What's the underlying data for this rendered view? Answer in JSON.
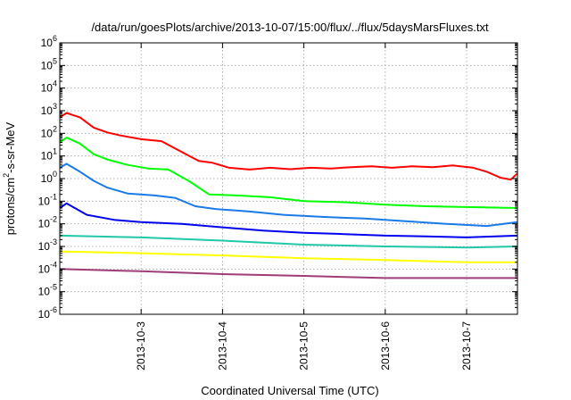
{
  "chart_data": {
    "type": "line",
    "title": "/data/run/goesPlots/archive/2013-10-07/15:00/flux/../flux/5daysMarsFluxes.txt",
    "xlabel": "Coordinated Universal Time (UTC)",
    "ylabel": {
      "prefix": "protons/cm",
      "sup": "2",
      "suffix": "-s-sr-MeV"
    },
    "y_scale": "log",
    "ylim": [
      1e-06,
      1000000.0
    ],
    "y_ticks": [
      {
        "exp": -6,
        "label_base": "10",
        "label_exp": "-6"
      },
      {
        "exp": -5,
        "label_base": "10",
        "label_exp": "-5"
      },
      {
        "exp": -4,
        "label_base": "10",
        "label_exp": "-4"
      },
      {
        "exp": -3,
        "label_base": "10",
        "label_exp": "-3"
      },
      {
        "exp": -2,
        "label_base": "10",
        "label_exp": "-2"
      },
      {
        "exp": -1,
        "label_base": "10",
        "label_exp": "-1"
      },
      {
        "exp": 0,
        "label_base": "10",
        "label_exp": "0"
      },
      {
        "exp": 1,
        "label_base": "10",
        "label_exp": "1"
      },
      {
        "exp": 2,
        "label_base": "10",
        "label_exp": "2"
      },
      {
        "exp": 3,
        "label_base": "10",
        "label_exp": "3"
      },
      {
        "exp": 4,
        "label_base": "10",
        "label_exp": "4"
      },
      {
        "exp": 5,
        "label_base": "10",
        "label_exp": "5"
      },
      {
        "exp": 6,
        "label_base": "10",
        "label_exp": "6"
      }
    ],
    "xlim": [
      "2013-10-02T00:00",
      "2013-10-07T15:00"
    ],
    "x_ticks": [
      {
        "value": "2013-10-03T00:00",
        "label": "2013-10-3"
      },
      {
        "value": "2013-10-04T00:00",
        "label": "2013-10-4"
      },
      {
        "value": "2013-10-05T00:00",
        "label": "2013-10-5"
      },
      {
        "value": "2013-10-06T00:00",
        "label": "2013-10-6"
      },
      {
        "value": "2013-10-07T00:00",
        "label": "2013-10-7"
      }
    ],
    "grid": true,
    "legend": "none",
    "series": [
      {
        "color": "#ff0000",
        "points": [
          [
            "2013-10-02T00:00",
            500
          ],
          [
            "2013-10-02T02:00",
            800
          ],
          [
            "2013-10-02T06:00",
            500
          ],
          [
            "2013-10-02T10:00",
            180
          ],
          [
            "2013-10-02T14:00",
            110
          ],
          [
            "2013-10-02T18:00",
            80
          ],
          [
            "2013-10-03T00:00",
            55
          ],
          [
            "2013-10-03T06:00",
            45
          ],
          [
            "2013-10-03T12:00",
            15
          ],
          [
            "2013-10-03T17:00",
            6
          ],
          [
            "2013-10-03T21:00",
            5
          ],
          [
            "2013-10-04T02:00",
            3
          ],
          [
            "2013-10-04T08:00",
            2.5
          ],
          [
            "2013-10-04T14:00",
            3
          ],
          [
            "2013-10-04T20:00",
            2.6
          ],
          [
            "2013-10-05T02:00",
            3
          ],
          [
            "2013-10-05T08:00",
            2.8
          ],
          [
            "2013-10-05T14:00",
            3.2
          ],
          [
            "2013-10-05T20:00",
            3.5
          ],
          [
            "2013-10-06T02:00",
            3
          ],
          [
            "2013-10-06T08:00",
            3.5
          ],
          [
            "2013-10-06T14:00",
            3.2
          ],
          [
            "2013-10-06T20:00",
            3.8
          ],
          [
            "2013-10-07T02:00",
            3
          ],
          [
            "2013-10-07T06:00",
            2
          ],
          [
            "2013-10-07T10:00",
            1.1
          ],
          [
            "2013-10-07T13:00",
            0.9
          ],
          [
            "2013-10-07T15:00",
            1.7
          ]
        ]
      },
      {
        "color": "#00ff00",
        "points": [
          [
            "2013-10-02T00:00",
            40
          ],
          [
            "2013-10-02T02:00",
            65
          ],
          [
            "2013-10-02T06:00",
            35
          ],
          [
            "2013-10-02T10:00",
            12
          ],
          [
            "2013-10-02T14:00",
            7
          ],
          [
            "2013-10-02T20:00",
            4
          ],
          [
            "2013-10-03T02:00",
            2.8
          ],
          [
            "2013-10-03T08:00",
            2.5
          ],
          [
            "2013-10-03T14:00",
            0.8
          ],
          [
            "2013-10-03T20:00",
            0.2
          ],
          [
            "2013-10-04T04:00",
            0.18
          ],
          [
            "2013-10-04T14:00",
            0.15
          ],
          [
            "2013-10-05T00:00",
            0.1
          ],
          [
            "2013-10-05T12:00",
            0.09
          ],
          [
            "2013-10-06T00:00",
            0.07
          ],
          [
            "2013-10-06T12:00",
            0.06
          ],
          [
            "2013-10-07T00:00",
            0.055
          ],
          [
            "2013-10-07T15:00",
            0.05
          ]
        ]
      },
      {
        "color": "#1a7ae8",
        "points": [
          [
            "2013-10-02T00:00",
            3
          ],
          [
            "2013-10-02T02:00",
            4.5
          ],
          [
            "2013-10-02T06:00",
            2
          ],
          [
            "2013-10-02T10:00",
            0.8
          ],
          [
            "2013-10-02T14:00",
            0.4
          ],
          [
            "2013-10-02T20:00",
            0.22
          ],
          [
            "2013-10-03T04:00",
            0.18
          ],
          [
            "2013-10-03T10:00",
            0.14
          ],
          [
            "2013-10-03T16:00",
            0.06
          ],
          [
            "2013-10-03T22:00",
            0.045
          ],
          [
            "2013-10-04T08:00",
            0.035
          ],
          [
            "2013-10-04T18:00",
            0.025
          ],
          [
            "2013-10-05T06:00",
            0.02
          ],
          [
            "2013-10-05T18:00",
            0.017
          ],
          [
            "2013-10-06T06:00",
            0.013
          ],
          [
            "2013-10-06T18:00",
            0.01
          ],
          [
            "2013-10-07T06:00",
            0.008
          ],
          [
            "2013-10-07T15:00",
            0.012
          ]
        ]
      },
      {
        "color": "#0000ee",
        "points": [
          [
            "2013-10-02T00:00",
            0.05
          ],
          [
            "2013-10-02T02:00",
            0.08
          ],
          [
            "2013-10-02T08:00",
            0.025
          ],
          [
            "2013-10-02T16:00",
            0.015
          ],
          [
            "2013-10-03T00:00",
            0.012
          ],
          [
            "2013-10-03T12:00",
            0.01
          ],
          [
            "2013-10-04T00:00",
            0.007
          ],
          [
            "2013-10-04T12:00",
            0.005
          ],
          [
            "2013-10-05T00:00",
            0.004
          ],
          [
            "2013-10-05T12:00",
            0.0035
          ],
          [
            "2013-10-06T00:00",
            0.003
          ],
          [
            "2013-10-06T12:00",
            0.0028
          ],
          [
            "2013-10-07T00:00",
            0.0025
          ],
          [
            "2013-10-07T15:00",
            0.003
          ]
        ]
      },
      {
        "color": "#20c8a8",
        "points": [
          [
            "2013-10-02T00:00",
            0.003
          ],
          [
            "2013-10-03T00:00",
            0.0025
          ],
          [
            "2013-10-04T00:00",
            0.0018
          ],
          [
            "2013-10-05T00:00",
            0.0012
          ],
          [
            "2013-10-06T00:00",
            0.001
          ],
          [
            "2013-10-07T00:00",
            0.0009
          ],
          [
            "2013-10-07T15:00",
            0.001
          ]
        ]
      },
      {
        "color": "#ffff00",
        "points": [
          [
            "2013-10-02T00:00",
            0.0006
          ],
          [
            "2013-10-03T00:00",
            0.0005
          ],
          [
            "2013-10-04T00:00",
            0.0004
          ],
          [
            "2013-10-05T00:00",
            0.0003
          ],
          [
            "2013-10-06T00:00",
            0.00025
          ],
          [
            "2013-10-07T00:00",
            0.0002
          ],
          [
            "2013-10-07T15:00",
            0.0002
          ]
        ]
      },
      {
        "color": "#a03c78",
        "points": [
          [
            "2013-10-02T00:00",
            0.0001
          ],
          [
            "2013-10-03T00:00",
            8e-05
          ],
          [
            "2013-10-04T00:00",
            6e-05
          ],
          [
            "2013-10-05T00:00",
            5e-05
          ],
          [
            "2013-10-06T00:00",
            4e-05
          ],
          [
            "2013-10-07T00:00",
            4e-05
          ],
          [
            "2013-10-07T15:00",
            4e-05
          ]
        ]
      }
    ]
  }
}
